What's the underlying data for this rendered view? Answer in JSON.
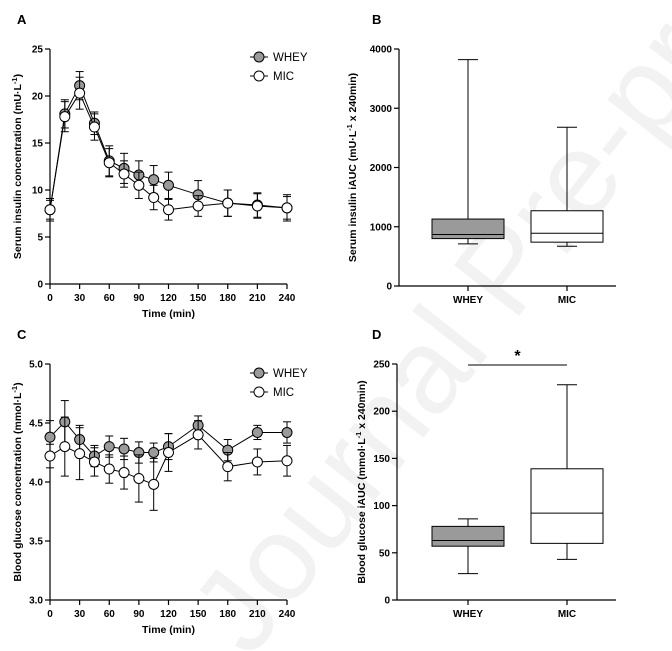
{
  "watermark": "Journal Pre-proof",
  "colors": {
    "whey": "#9a9a9a",
    "mic": "#ffffff",
    "stroke": "#000000"
  },
  "chart_data": [
    {
      "panel": "A",
      "type": "line",
      "ylabel_parts": [
        "Serum insulin concentration (mU·L",
        "-1",
        ")"
      ],
      "xlabel": "Time (min)",
      "xticks": [
        0,
        30,
        60,
        90,
        120,
        150,
        180,
        210,
        240
      ],
      "yticks": [
        0,
        5,
        10,
        15,
        20,
        25
      ],
      "xlim": [
        0,
        240
      ],
      "ylim": [
        0,
        25
      ],
      "legend_position": "top-right",
      "series": [
        {
          "name": "WHEY",
          "x": [
            0,
            15,
            30,
            45,
            60,
            75,
            90,
            105,
            120,
            150,
            180,
            210,
            240
          ],
          "values": [
            7.9,
            18.1,
            21.1,
            17.1,
            13.1,
            12.3,
            11.6,
            11.1,
            10.5,
            9.5,
            8.6,
            8.4,
            8.1
          ],
          "errors": [
            1.2,
            1.5,
            1.5,
            1.2,
            1.6,
            1.6,
            1.5,
            1.5,
            1.4,
            1.5,
            1.4,
            1.3,
            1.2
          ]
        },
        {
          "name": "MIC",
          "x": [
            0,
            15,
            30,
            45,
            60,
            75,
            90,
            105,
            120,
            150,
            180,
            210,
            240
          ],
          "values": [
            7.9,
            17.8,
            20.3,
            16.7,
            12.9,
            11.7,
            10.5,
            9.2,
            7.9,
            8.3,
            8.6,
            8.3,
            8.1
          ],
          "errors": [
            1.0,
            1.6,
            1.7,
            1.4,
            1.5,
            1.4,
            1.4,
            1.3,
            1.1,
            1.1,
            1.4,
            1.3,
            1.4
          ]
        }
      ]
    },
    {
      "panel": "B",
      "type": "box",
      "ylabel_parts": [
        "Serum insulin iAUC (mU·L",
        "-1",
        " x 240min)"
      ],
      "categories": [
        "WHEY",
        "MIC"
      ],
      "yticks": [
        0,
        1000,
        2000,
        3000,
        4000
      ],
      "ylim": [
        0,
        4000
      ],
      "boxes": [
        {
          "name": "WHEY",
          "min": 710,
          "q1": 800,
          "median": 870,
          "q3": 1130,
          "max": 3820
        },
        {
          "name": "MIC",
          "min": 670,
          "q1": 740,
          "median": 890,
          "q3": 1270,
          "max": 2680
        }
      ]
    },
    {
      "panel": "C",
      "type": "line",
      "ylabel_parts": [
        "Blood glucose concentration (mmol·L",
        "-1",
        ")"
      ],
      "xlabel": "Time (min)",
      "xticks": [
        0,
        30,
        60,
        90,
        120,
        150,
        180,
        210,
        240
      ],
      "yticks": [
        "3.0",
        "3.5",
        "4.0",
        "4.5",
        "5.0"
      ],
      "xlim": [
        0,
        240
      ],
      "ylim": [
        3.0,
        5.0
      ],
      "legend_position": "top-right",
      "series": [
        {
          "name": "WHEY",
          "x": [
            0,
            15,
            30,
            45,
            60,
            75,
            90,
            105,
            120,
            150,
            180,
            210,
            240
          ],
          "values": [
            4.38,
            4.51,
            4.36,
            4.22,
            4.3,
            4.28,
            4.25,
            4.25,
            4.3,
            4.48,
            4.27,
            4.42,
            4.42
          ],
          "errors": [
            0.14,
            0.18,
            0.12,
            0.09,
            0.09,
            0.09,
            0.09,
            0.08,
            0.11,
            0.08,
            0.09,
            0.06,
            0.09
          ]
        },
        {
          "name": "MIC",
          "x": [
            0,
            15,
            30,
            45,
            60,
            75,
            90,
            105,
            120,
            150,
            180,
            210,
            240
          ],
          "values": [
            4.22,
            4.3,
            4.24,
            4.17,
            4.11,
            4.08,
            4.03,
            3.98,
            4.25,
            4.4,
            4.13,
            4.17,
            4.18
          ],
          "errors": [
            0.1,
            0.25,
            0.22,
            0.12,
            0.12,
            0.14,
            0.2,
            0.22,
            0.16,
            0.12,
            0.12,
            0.11,
            0.13
          ]
        }
      ]
    },
    {
      "panel": "D",
      "type": "box",
      "ylabel_parts": [
        "Blood glucose iAUC (mmol·L",
        "-1",
        " x 240min)"
      ],
      "categories": [
        "WHEY",
        "MIC"
      ],
      "yticks": [
        0,
        50,
        100,
        150,
        200,
        250
      ],
      "ylim": [
        0,
        250
      ],
      "significance": "*",
      "boxes": [
        {
          "name": "WHEY",
          "min": 28,
          "q1": 57,
          "median": 63,
          "q3": 78,
          "max": 86
        },
        {
          "name": "MIC",
          "min": 43,
          "q1": 60,
          "median": 92,
          "q3": 139,
          "max": 228
        }
      ]
    }
  ]
}
